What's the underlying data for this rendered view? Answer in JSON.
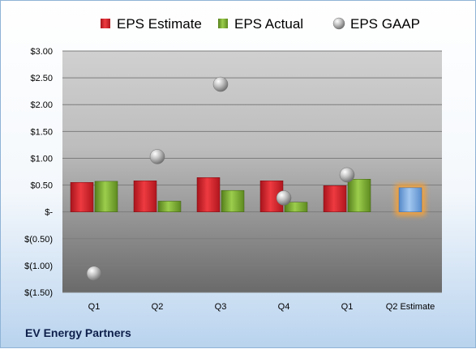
{
  "chart_data": {
    "type": "bar",
    "categories": [
      "Q1",
      "Q2",
      "Q3",
      "Q4",
      "Q1",
      "Q2 Estimate"
    ],
    "series": [
      {
        "name": "EPS Estimate",
        "values": [
          0.55,
          0.58,
          0.64,
          0.58,
          0.49,
          null
        ],
        "color": "#c8202a"
      },
      {
        "name": "EPS Actual",
        "values": [
          0.57,
          0.2,
          0.4,
          0.18,
          0.61,
          null
        ],
        "color": "#6a9a2a"
      },
      {
        "name": "EPS GAAP",
        "values": [
          -1.15,
          1.03,
          2.38,
          0.26,
          0.69,
          null
        ],
        "color": "#9a9a9a",
        "marker": "sphere"
      }
    ],
    "estimate_bar": {
      "category": "Q2 Estimate",
      "value": 0.45,
      "color": "#6d9fd9",
      "glow": "#f3a13a"
    },
    "yticks": [
      3.0,
      2.5,
      2.0,
      1.5,
      1.0,
      0.5,
      0,
      -0.5,
      -1.0,
      -1.5
    ],
    "ytick_labels": [
      "$3.00",
      "$2.50",
      "$2.00",
      "$1.50",
      "$1.00",
      "$0.50",
      "$-",
      "$(0.50)",
      "$(1.00)",
      "$(1.50)"
    ],
    "ylim": [
      -1.5,
      3.0
    ],
    "grid": true,
    "legend_position": "top",
    "title": "",
    "xlabel": "",
    "ylabel": ""
  },
  "footer": {
    "company": "EV Energy Partners"
  }
}
